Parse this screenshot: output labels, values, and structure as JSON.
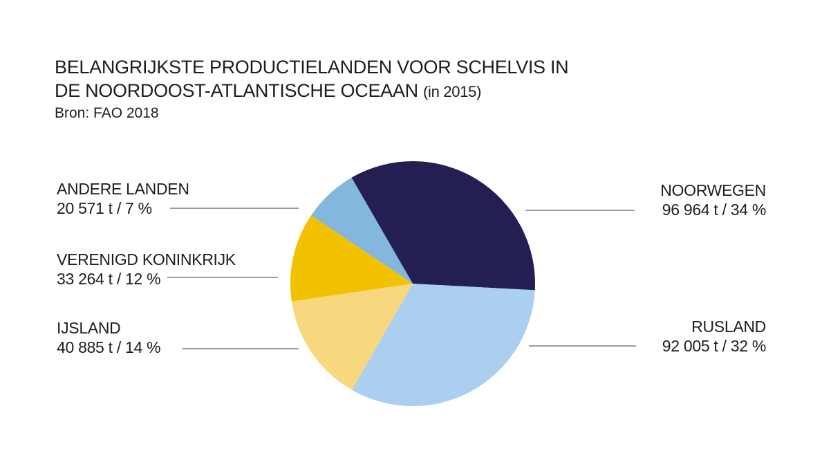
{
  "header": {
    "title_line1": "BELANGRIJKSTE PRODUCTIELANDEN VOOR SCHELVIS IN",
    "title_line2": "DE NOORDOOST-ATLANTISCHE OCEAAN",
    "title_suffix": "(in 2015)",
    "source": "Bron: FAO 2018"
  },
  "chart_data": {
    "type": "pie",
    "title": "BELANGRIJKSTE PRODUCTIELANDEN VOOR SCHELVIS IN DE NOORDOOST-ATLANTISCHE OCEAAN (in 2015)",
    "source": "Bron: FAO 2018",
    "unit": "t",
    "start_angle_deg": -30,
    "direction": "clockwise",
    "slices": [
      {
        "name": "NOORWEGEN",
        "value": 96964,
        "percent": 34,
        "value_label": "96 964 t / 34 %",
        "color": "#241f52"
      },
      {
        "name": "RUSLAND",
        "value": 92005,
        "percent": 32,
        "value_label": "92 005 t / 32 %",
        "color": "#aacfef"
      },
      {
        "name": "IJSLAND",
        "value": 40885,
        "percent": 14,
        "value_label": "40 885 t / 14 %",
        "color": "#f8d87f"
      },
      {
        "name": "VERENIGD KONINKRIJK",
        "value": 33264,
        "percent": 12,
        "value_label": "33 264 t / 12 %",
        "color": "#f2c200"
      },
      {
        "name": "ANDERE LANDEN",
        "value": 20571,
        "percent": 7,
        "value_label": "20 571 t / 7 %",
        "color": "#84b7dd"
      }
    ]
  }
}
